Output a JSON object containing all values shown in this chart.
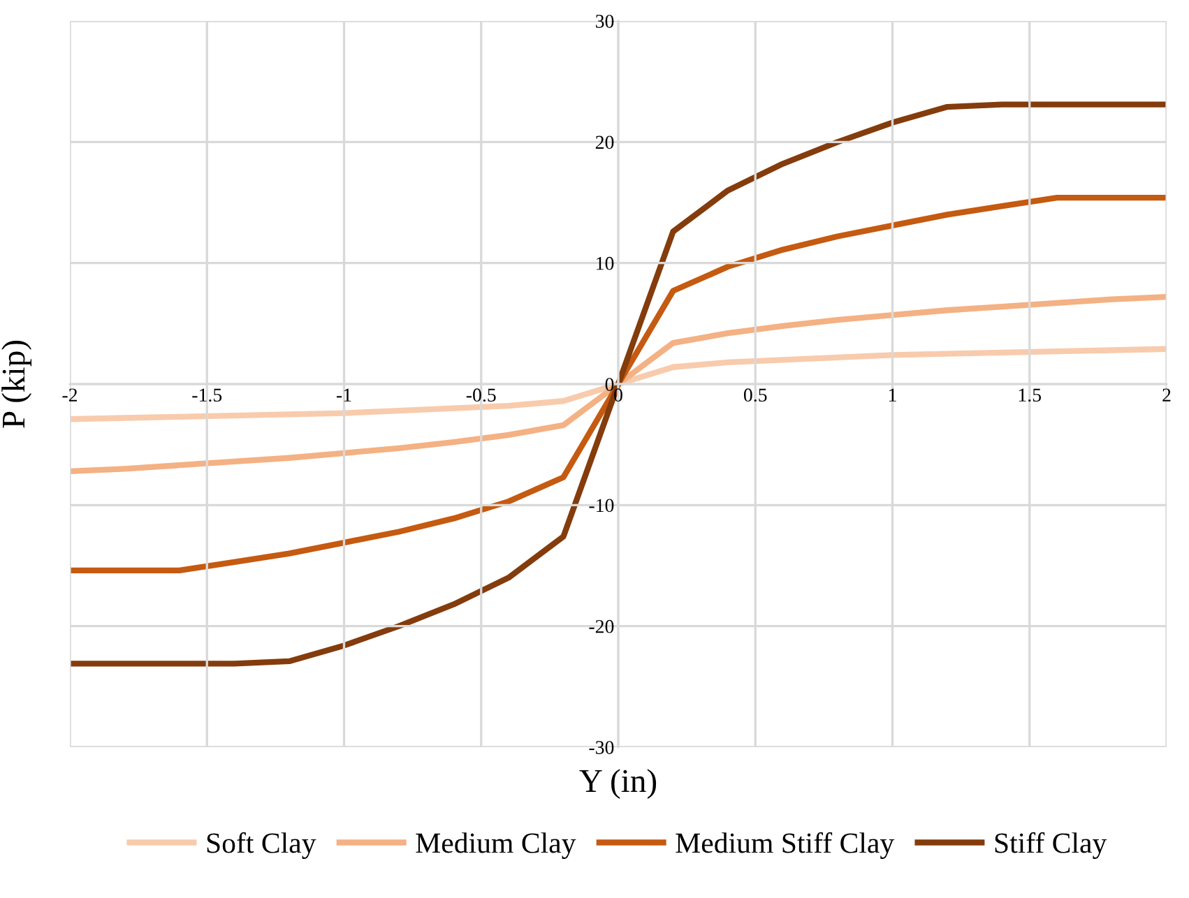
{
  "chart_data": {
    "type": "line",
    "xlabel": "Y (in)",
    "ylabel": "P (kip)",
    "x": [
      -2,
      -1.8,
      -1.6,
      -1.4,
      -1.2,
      -1,
      -0.8,
      -0.6,
      -0.4,
      -0.2,
      0,
      0.2,
      0.4,
      0.6,
      0.8,
      1,
      1.2,
      1.4,
      1.6,
      1.8,
      2
    ],
    "series": [
      {
        "name": "Soft Clay",
        "color": "#f8cbad",
        "values": [
          -2.9,
          -2.8,
          -2.7,
          -2.6,
          -2.5,
          -2.4,
          -2.2,
          -2.0,
          -1.8,
          -1.4,
          0,
          1.4,
          1.8,
          2.0,
          2.2,
          2.4,
          2.5,
          2.6,
          2.7,
          2.8,
          2.9
        ]
      },
      {
        "name": "Medium Clay",
        "color": "#f4b183",
        "values": [
          -7.2,
          -7.0,
          -6.7,
          -6.4,
          -6.1,
          -5.7,
          -5.3,
          -4.8,
          -4.2,
          -3.4,
          0,
          3.4,
          4.2,
          4.8,
          5.3,
          5.7,
          6.1,
          6.4,
          6.7,
          7.0,
          7.2
        ]
      },
      {
        "name": "Medium Stiff Clay",
        "color": "#c55a11",
        "values": [
          -15.4,
          -15.4,
          -15.4,
          -14.7,
          -14.0,
          -13.1,
          -12.2,
          -11.1,
          -9.7,
          -7.7,
          0,
          7.7,
          9.7,
          11.1,
          12.2,
          13.1,
          14.0,
          14.7,
          15.4,
          15.4,
          15.4
        ]
      },
      {
        "name": "Stiff Clay",
        "color": "#843c0c",
        "values": [
          -23.1,
          -23.1,
          -23.1,
          -23.1,
          -22.9,
          -21.6,
          -20.0,
          -18.2,
          -16.0,
          -12.6,
          0,
          12.6,
          16.0,
          18.2,
          20.0,
          21.6,
          22.9,
          23.1,
          23.1,
          23.1,
          23.1
        ]
      }
    ],
    "xlim": [
      -2,
      2
    ],
    "ylim": [
      -30,
      30
    ],
    "xticks": [
      -2,
      -1.5,
      -1,
      -0.5,
      0,
      0.5,
      1,
      1.5,
      2
    ],
    "yticks": [
      -30,
      -20,
      -10,
      0,
      10,
      20,
      30
    ],
    "grid": true,
    "legend": "bottom",
    "line_style": "solid",
    "marker": "none"
  }
}
